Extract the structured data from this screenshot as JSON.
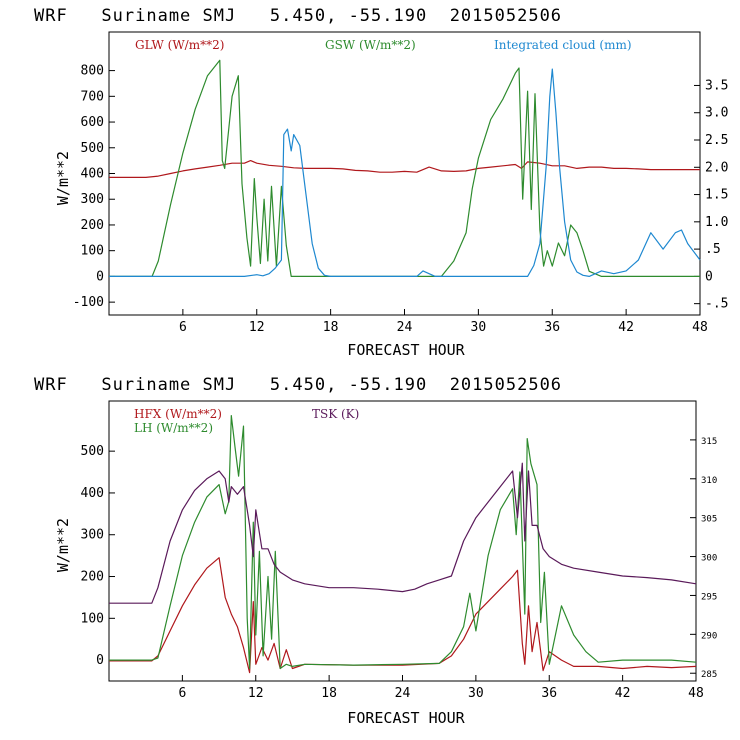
{
  "chart_data": [
    {
      "type": "line",
      "title": "WRF   Suriname SMJ   5.450, -55.190  2015052506",
      "xlabel": "FORECAST HOUR",
      "ylabel": "W/m**2",
      "xlim": [
        0,
        48
      ],
      "ylim": [
        -150,
        950
      ],
      "y2lim": [
        -0.708,
        4.48
      ],
      "x_ticks": [
        6,
        12,
        18,
        24,
        30,
        36,
        42,
        48
      ],
      "x_tick_labels": [
        "6",
        "12",
        "18",
        "24",
        "30",
        "36",
        "42",
        "48"
      ],
      "y_ticks": [
        -100,
        0,
        100,
        200,
        300,
        400,
        500,
        600,
        700,
        800
      ],
      "y_tick_labels": [
        "-100",
        "0",
        "100",
        "200",
        "300",
        "400",
        "500",
        "600",
        "700",
        "800"
      ],
      "y2_ticks": [
        -0.5,
        0,
        0.5,
        1.0,
        1.5,
        2.0,
        2.5,
        3.0,
        3.5
      ],
      "y2_tick_labels": [
        "-.5",
        "0",
        ".5",
        "1.0",
        "1.5",
        "2.0",
        "2.5",
        "3.0",
        "3.5"
      ],
      "series": [
        {
          "name": "GLW (W/m**2)",
          "axis": "left",
          "color": "#b0181c",
          "x": [
            0,
            3,
            4,
            5,
            6,
            7,
            8,
            9,
            10,
            11,
            11.5,
            12,
            13,
            14,
            15,
            16,
            17,
            18,
            19,
            20,
            21,
            22,
            23,
            24,
            25,
            26,
            27,
            28,
            29,
            30,
            31,
            32,
            33,
            33.5,
            34,
            35,
            36,
            37,
            38,
            39,
            40,
            41,
            42,
            43,
            44,
            45,
            46,
            47,
            48
          ],
          "y": [
            385,
            385,
            390,
            400,
            410,
            418,
            425,
            432,
            440,
            440,
            450,
            440,
            432,
            428,
            422,
            420,
            420,
            420,
            418,
            412,
            410,
            405,
            405,
            408,
            405,
            425,
            410,
            408,
            410,
            420,
            425,
            430,
            435,
            420,
            445,
            440,
            430,
            430,
            420,
            425,
            425,
            420,
            420,
            418,
            415,
            415,
            415,
            415,
            415
          ]
        },
        {
          "name": "GSW (W/m**2)",
          "axis": "left",
          "color": "#2e8b2e",
          "x": [
            0,
            3.5,
            4,
            5,
            6,
            7,
            8,
            9,
            9.2,
            9.4,
            10,
            10.5,
            10.8,
            11.2,
            11.5,
            11.8,
            12,
            12.3,
            12.6,
            12.9,
            13.2,
            13.6,
            14,
            14.4,
            14.8,
            15.2,
            16,
            27,
            28,
            29,
            29.5,
            30,
            31,
            32,
            33,
            33.3,
            33.6,
            34,
            34.3,
            34.6,
            35,
            35.3,
            35.6,
            36,
            36.5,
            37,
            37.5,
            38,
            38.5,
            39,
            40,
            41,
            42,
            48
          ],
          "y": [
            0,
            0,
            60,
            280,
            480,
            650,
            780,
            840,
            450,
            420,
            700,
            780,
            360,
            150,
            40,
            380,
            230,
            50,
            300,
            60,
            350,
            40,
            350,
            120,
            0,
            0,
            0,
            0,
            60,
            170,
            340,
            460,
            610,
            690,
            790,
            810,
            300,
            720,
            260,
            710,
            180,
            40,
            100,
            40,
            130,
            80,
            200,
            170,
            100,
            20,
            0,
            0,
            0,
            0
          ]
        },
        {
          "name": "Integrated cloud (mm)",
          "axis": "right",
          "color": "#1e88d0",
          "x": [
            0,
            11,
            12,
            12.5,
            13,
            13.5,
            14,
            14.2,
            14.5,
            14.8,
            15,
            15.5,
            16,
            16.5,
            17,
            17.5,
            18,
            25,
            25.5,
            26,
            26.5,
            34,
            34.5,
            35,
            35.5,
            35.8,
            36,
            36.3,
            36.6,
            37,
            37.5,
            38,
            38.5,
            39,
            40,
            41,
            42,
            43,
            44,
            45,
            46,
            46.5,
            47,
            48
          ],
          "y": [
            0,
            0,
            0.03,
            0.01,
            0.05,
            0.15,
            0.3,
            2.6,
            2.7,
            2.3,
            2.6,
            2.4,
            1.5,
            0.6,
            0.15,
            0.02,
            0,
            0,
            0.1,
            0.05,
            0,
            0,
            0.2,
            0.6,
            2.0,
            3.3,
            3.8,
            3.0,
            2.0,
            1.0,
            0.3,
            0.08,
            0.02,
            0,
            0.1,
            0.05,
            0.1,
            0.3,
            0.8,
            0.5,
            0.8,
            0.85,
            0.6,
            0.3
          ]
        }
      ]
    },
    {
      "type": "line",
      "title": "WRF   Suriname SMJ   5.450, -55.190  2015052506",
      "xlabel": "FORECAST HOUR",
      "ylabel": "W/m**2",
      "xlim": [
        0,
        48
      ],
      "ylim": [
        -50,
        620
      ],
      "y2lim": [
        284,
        320
      ],
      "x_ticks": [
        6,
        12,
        18,
        24,
        30,
        36,
        42,
        48
      ],
      "x_tick_labels": [
        "6",
        "12",
        "18",
        "24",
        "30",
        "36",
        "42",
        "48"
      ],
      "y_ticks": [
        0,
        100,
        200,
        300,
        400,
        500
      ],
      "y_tick_labels": [
        "0",
        "100",
        "200",
        "300",
        "400",
        "500"
      ],
      "y2_ticks": [
        285,
        290,
        295,
        300,
        305,
        310,
        315
      ],
      "y2_tick_labels": [
        "285",
        "290",
        "295",
        "300",
        "305",
        "310",
        "315"
      ],
      "series": [
        {
          "name": "HFX (W/m**2)",
          "axis": "left",
          "color": "#b0181c",
          "x": [
            0,
            3.5,
            4,
            5,
            6,
            7,
            8,
            9,
            9.5,
            10,
            10.5,
            11,
            11.5,
            11.8,
            12,
            12.5,
            13,
            13.5,
            14,
            14.5,
            15,
            16,
            20,
            24,
            27,
            28,
            29,
            30,
            31,
            32,
            33,
            33.4,
            33.8,
            34,
            34.3,
            34.6,
            35,
            35.5,
            36,
            37,
            38,
            40,
            42,
            44,
            46,
            48
          ],
          "y": [
            -2,
            -2,
            10,
            70,
            130,
            180,
            220,
            245,
            150,
            110,
            80,
            30,
            -30,
            140,
            -10,
            30,
            0,
            40,
            -20,
            25,
            -20,
            -10,
            -12,
            -12,
            -8,
            10,
            50,
            110,
            140,
            170,
            200,
            215,
            40,
            -10,
            130,
            20,
            90,
            -25,
            20,
            0,
            -15,
            -15,
            -20,
            -15,
            -18,
            -15
          ]
        },
        {
          "name": "LH (W/m**2)",
          "axis": "left",
          "color": "#2e8b2e",
          "x": [
            0,
            3.5,
            4,
            5,
            6,
            7,
            8,
            9,
            9.5,
            9.8,
            10,
            10.3,
            10.6,
            11,
            11.3,
            11.5,
            11.8,
            12,
            12.3,
            12.6,
            13,
            13.3,
            13.6,
            14,
            14.5,
            15,
            16,
            20,
            24,
            27,
            28,
            29,
            29.5,
            30,
            31,
            32,
            33,
            33.3,
            33.6,
            34,
            34.2,
            34.5,
            35,
            35.3,
            35.6,
            36,
            37,
            38,
            39,
            40,
            42,
            44,
            46,
            48
          ],
          "y": [
            0,
            0,
            5,
            130,
            250,
            330,
            390,
            420,
            350,
            380,
            585,
            510,
            440,
            560,
            100,
            -20,
            330,
            60,
            260,
            10,
            200,
            50,
            260,
            -20,
            -10,
            -15,
            -10,
            -12,
            -10,
            -8,
            20,
            80,
            160,
            70,
            250,
            360,
            410,
            300,
            450,
            110,
            530,
            470,
            420,
            90,
            210,
            -10,
            130,
            60,
            20,
            -5,
            0,
            0,
            0,
            -5
          ]
        },
        {
          "name": "TSK (K)",
          "axis": "right",
          "color": "#5a1a5a",
          "x": [
            0,
            3.5,
            4,
            5,
            6,
            7,
            8,
            9,
            9.5,
            9.8,
            10,
            10.5,
            11,
            11.3,
            11.5,
            11.8,
            12,
            12.5,
            13,
            13.5,
            14,
            15,
            16,
            18,
            20,
            22,
            24,
            25,
            26,
            27,
            28,
            29,
            30,
            31,
            32,
            33,
            33.4,
            33.8,
            34,
            34.3,
            34.6,
            35,
            35.5,
            36,
            37,
            38,
            40,
            42,
            44,
            46,
            48
          ],
          "y": [
            294,
            294,
            296,
            302,
            306,
            308.5,
            310,
            311,
            310,
            307,
            309,
            308,
            309,
            306,
            304,
            300,
            306,
            301,
            301,
            299,
            298,
            297,
            296.5,
            296,
            296,
            295.8,
            295.5,
            295.8,
            296.5,
            297,
            297.5,
            302,
            305,
            307,
            309,
            311,
            305,
            312,
            302,
            311,
            304,
            304,
            301,
            300,
            299,
            298.5,
            298,
            297.5,
            297.3,
            297,
            296.5
          ]
        }
      ]
    }
  ]
}
